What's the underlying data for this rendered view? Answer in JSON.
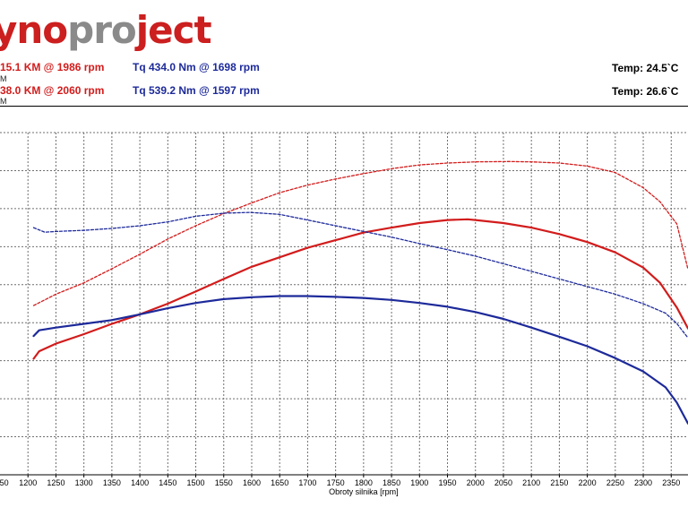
{
  "header": {
    "logo_part1": "yno",
    "logo_part2": "pro",
    "logo_part3": "ject",
    "run1": {
      "power": "15.1 KM @ 1986 rpm",
      "torque": "Tq 434.0 Nm @ 1698 rpm",
      "temp": "Temp: 24.5`C",
      "sub": "M"
    },
    "run2": {
      "power": "38.0 KM @ 2060 rpm",
      "torque": "Tq 539.2 Nm @ 1597 rpm",
      "temp": "Temp: 26.6`C",
      "sub": "M"
    }
  },
  "colors": {
    "power": "#d21c1c",
    "torque": "#1d2a9a",
    "grid": "#6f6f6f"
  },
  "chart_data": {
    "type": "line",
    "xlabel": "Obroty silnika [rpm]",
    "xlim": [
      1150,
      2380
    ],
    "ylim": [
      0,
      9
    ],
    "grid": true,
    "x_ticks": [
      1200,
      1250,
      1300,
      1350,
      1400,
      1450,
      1500,
      1550,
      1600,
      1650,
      1700,
      1750,
      1800,
      1850,
      1900,
      1950,
      2000,
      2050,
      2100,
      2150,
      2200,
      2250,
      2300,
      2350
    ],
    "x_tick_labels": [
      "1200",
      "1250",
      "1300",
      "1350",
      "1400",
      "1450",
      "1500",
      "1550",
      "1600",
      "1650",
      "1700",
      "1750",
      "1800",
      "1850",
      "1900",
      "1950",
      "2000",
      "2050",
      "2100",
      "2150",
      "2200",
      "2250",
      "2300",
      "2350"
    ],
    "series": [
      {
        "style": "solid",
        "color": "#d21c1c",
        "x": [
          1210,
          1220,
          1250,
          1300,
          1350,
          1400,
          1450,
          1500,
          1550,
          1600,
          1650,
          1700,
          1750,
          1800,
          1850,
          1900,
          1950,
          1986,
          2000,
          2050,
          2100,
          2150,
          2200,
          2250,
          2300,
          2330,
          2360,
          2380
        ],
        "y": [
          3.05,
          3.25,
          3.45,
          3.7,
          3.97,
          4.22,
          4.5,
          4.82,
          5.15,
          5.47,
          5.72,
          5.97,
          6.17,
          6.37,
          6.5,
          6.62,
          6.7,
          6.72,
          6.7,
          6.62,
          6.5,
          6.33,
          6.12,
          5.85,
          5.45,
          5.05,
          4.4,
          3.85
        ]
      },
      {
        "style": "solid",
        "color": "#1d2a9a",
        "x": [
          1210,
          1220,
          1250,
          1300,
          1350,
          1400,
          1450,
          1500,
          1550,
          1600,
          1650,
          1698,
          1750,
          1800,
          1850,
          1900,
          1950,
          2000,
          2050,
          2100,
          2150,
          2200,
          2250,
          2300,
          2340,
          2360,
          2380
        ],
        "y": [
          3.65,
          3.8,
          3.87,
          3.97,
          4.07,
          4.22,
          4.38,
          4.52,
          4.62,
          4.67,
          4.7,
          4.7,
          4.68,
          4.65,
          4.6,
          4.52,
          4.42,
          4.28,
          4.1,
          3.87,
          3.63,
          3.38,
          3.07,
          2.72,
          2.3,
          1.9,
          1.35
        ]
      },
      {
        "style": "dashed",
        "color": "#d21c1c",
        "x": [
          1210,
          1250,
          1300,
          1350,
          1400,
          1450,
          1500,
          1550,
          1600,
          1650,
          1700,
          1750,
          1800,
          1850,
          1900,
          1950,
          2000,
          2060,
          2100,
          2150,
          2200,
          2250,
          2300,
          2330,
          2360,
          2380
        ],
        "y": [
          4.45,
          4.75,
          5.05,
          5.42,
          5.8,
          6.2,
          6.55,
          6.87,
          7.15,
          7.42,
          7.62,
          7.78,
          7.92,
          8.05,
          8.15,
          8.2,
          8.23,
          8.24,
          8.23,
          8.2,
          8.12,
          7.95,
          7.55,
          7.18,
          6.6,
          5.4
        ]
      },
      {
        "style": "dashed",
        "color": "#1d2a9a",
        "x": [
          1210,
          1230,
          1250,
          1300,
          1350,
          1400,
          1450,
          1500,
          1550,
          1597,
          1650,
          1700,
          1750,
          1800,
          1850,
          1900,
          1950,
          2000,
          2050,
          2100,
          2150,
          2200,
          2250,
          2300,
          2340,
          2360,
          2380
        ],
        "y": [
          6.5,
          6.38,
          6.4,
          6.43,
          6.48,
          6.55,
          6.65,
          6.8,
          6.88,
          6.9,
          6.85,
          6.7,
          6.55,
          6.4,
          6.25,
          6.08,
          5.92,
          5.75,
          5.55,
          5.35,
          5.15,
          4.95,
          4.75,
          4.5,
          4.25,
          3.98,
          3.6
        ]
      }
    ]
  }
}
